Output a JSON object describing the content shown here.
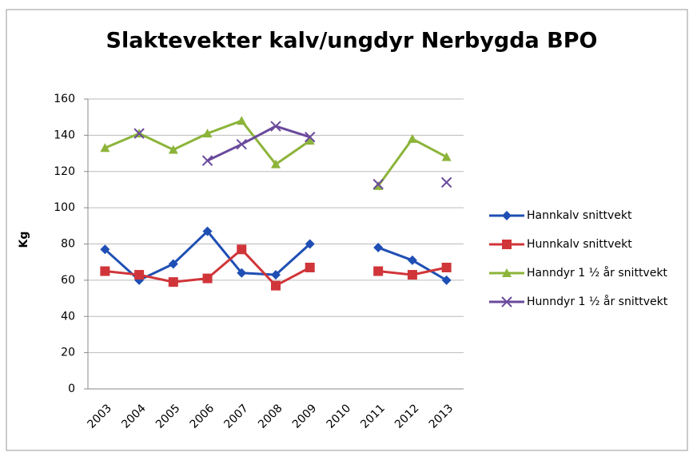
{
  "chart_data": {
    "type": "line",
    "title": "Slaktevekter kalv/ungdyr Nerbygda BPO",
    "y_label": "Kg",
    "categories": [
      "2003",
      "2004",
      "2005",
      "2006",
      "2007",
      "2008",
      "2009",
      "2010",
      "2011",
      "2012",
      "2013"
    ],
    "series": [
      {
        "name": "Hannkalv snittvekt",
        "color": "#1f4fb4",
        "marker": "diamond",
        "values": [
          77,
          60,
          69,
          87,
          64,
          63,
          80,
          null,
          78,
          71,
          60
        ]
      },
      {
        "name": "Hunnkalv snittvekt",
        "color": "#d0353a",
        "marker": "square",
        "values": [
          65,
          63,
          59,
          61,
          77,
          57,
          67,
          null,
          65,
          63,
          67
        ]
      },
      {
        "name": "Hanndyr 1 ½ år snittvekt",
        "color": "#8cb43a",
        "marker": "triangle",
        "values": [
          133,
          141,
          132,
          141,
          148,
          124,
          137,
          null,
          112,
          138,
          128
        ]
      },
      {
        "name": "Hunndyr 1 ½ år snittvekt",
        "color": "#6a4a9c",
        "marker": "x",
        "values": [
          null,
          141,
          null,
          126,
          135,
          145,
          139,
          null,
          113,
          null,
          114
        ]
      }
    ],
    "ylim": [
      0,
      160
    ],
    "yticks": [
      0,
      20,
      40,
      60,
      80,
      100,
      120,
      140,
      160
    ],
    "grid": true,
    "legend": "right"
  }
}
